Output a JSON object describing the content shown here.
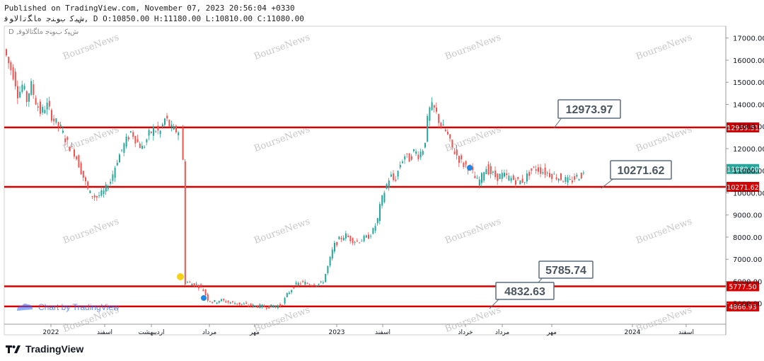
{
  "header": {
    "line1": "Published on TradingView.com, November 07, 2023 20:56:04 +0330",
    "line2": "ﺵﻴﮐ ﺏﻮﻨﺟ ﻩﺎﮕﺗﺍﻻﻮﻓ, D O:10850.00 H:11180.00 L:10810.00 C:11080.00",
    "symbol_line": "D ,ﺵﻴﮐ ﺏﻮﻨﺟ ﻩﺎﮕﺗﺍﻻﻮﻓ"
  },
  "watermark_text": "BourseNews",
  "chart_by": "Chart by TradingView",
  "footer_brand": "TradingView",
  "colors": {
    "up": "#26a69a",
    "down": "#ef5350",
    "hline": "#d50000",
    "callout_border": "#5d6d7e",
    "axis_text": "#131722",
    "last_price_bg": "#26a69a",
    "level_bg": "#d50000",
    "marker_yellow": "#f7d117",
    "marker_blue": "#1e88e5"
  },
  "chart_data": {
    "type": "candlestick",
    "ylim": [
      4000,
      17500
    ],
    "y_ticks": [
      17000,
      16000,
      15000,
      14000,
      13000,
      12000,
      11000,
      10000,
      9000,
      8000,
      7000,
      6000,
      5000
    ],
    "y_tick_labels": [
      "17000.00",
      "16000.00",
      "15000.00",
      "14000.00",
      "13000.00",
      "12000.00",
      "11000.00",
      "10000.00",
      "9000.00",
      "8000.00",
      "7000.00",
      "6000.00",
      "5000.00"
    ],
    "x_tick_labels": [
      "2022",
      "اسفند",
      "اردیبهشت",
      "مرداد",
      "مهر",
      "2023",
      "اسفند",
      "خرداد",
      "مرداد",
      "مهر",
      "2024",
      "اسفند"
    ],
    "horizontal_levels": [
      12959.51,
      10271.62,
      5777.5,
      4866.93
    ],
    "level_labels": [
      "12959.51",
      "10271.62",
      "5777.50",
      "4866.93"
    ],
    "last_price": 11080.0,
    "last_price_label": "11080.00",
    "callouts": [
      "12973.97",
      "10271.62",
      "5785.74",
      "4832.63"
    ],
    "price_path": [
      [
        0,
        16500
      ],
      [
        8,
        15700
      ],
      [
        14,
        15300
      ],
      [
        20,
        14400
      ],
      [
        26,
        14900
      ],
      [
        32,
        14200
      ],
      [
        38,
        14900
      ],
      [
        44,
        14200
      ],
      [
        52,
        13600
      ],
      [
        60,
        14000
      ],
      [
        70,
        13300
      ],
      [
        80,
        12900
      ],
      [
        90,
        12200
      ],
      [
        100,
        11800
      ],
      [
        110,
        10900
      ],
      [
        120,
        10000
      ],
      [
        130,
        9800
      ],
      [
        140,
        10000
      ],
      [
        150,
        10500
      ],
      [
        160,
        11500
      ],
      [
        170,
        12200
      ],
      [
        180,
        12800
      ],
      [
        188,
        12300
      ],
      [
        196,
        12000
      ],
      [
        204,
        12600
      ],
      [
        212,
        12900
      ],
      [
        220,
        12700
      ],
      [
        228,
        13400
      ],
      [
        236,
        12900
      ],
      [
        244,
        12800
      ],
      [
        252,
        12800
      ],
      [
        256,
        6000
      ],
      [
        264,
        5900
      ],
      [
        272,
        5850
      ],
      [
        280,
        5700
      ],
      [
        288,
        5200
      ],
      [
        296,
        5050
      ],
      [
        304,
        5150
      ],
      [
        312,
        5100
      ],
      [
        320,
        5050
      ],
      [
        330,
        5000
      ],
      [
        340,
        4950
      ],
      [
        350,
        4900
      ],
      [
        360,
        4880
      ],
      [
        370,
        4860
      ],
      [
        380,
        4870
      ],
      [
        392,
        4900
      ],
      [
        400,
        5400
      ],
      [
        410,
        5800
      ],
      [
        420,
        5950
      ],
      [
        430,
        5900
      ],
      [
        440,
        5880
      ],
      [
        450,
        5900
      ],
      [
        458,
        6700
      ],
      [
        466,
        7600
      ],
      [
        474,
        7900
      ],
      [
        482,
        8100
      ],
      [
        490,
        7900
      ],
      [
        498,
        7800
      ],
      [
        506,
        7900
      ],
      [
        514,
        8000
      ],
      [
        522,
        8300
      ],
      [
        528,
        8800
      ],
      [
        532,
        9500
      ],
      [
        540,
        10300
      ],
      [
        546,
        10800
      ],
      [
        552,
        10500
      ],
      [
        560,
        11300
      ],
      [
        566,
        11700
      ],
      [
        572,
        11500
      ],
      [
        580,
        11900
      ],
      [
        586,
        11700
      ],
      [
        594,
        12100
      ],
      [
        600,
        13700
      ],
      [
        606,
        13900
      ],
      [
        612,
        13500
      ],
      [
        618,
        13000
      ],
      [
        626,
        12700
      ],
      [
        632,
        12100
      ],
      [
        640,
        11700
      ],
      [
        648,
        11300
      ],
      [
        656,
        11200
      ],
      [
        662,
        10900
      ],
      [
        668,
        10500
      ],
      [
        674,
        10600
      ],
      [
        680,
        11200
      ],
      [
        688,
        10900
      ],
      [
        696,
        10700
      ],
      [
        704,
        10800
      ],
      [
        712,
        10700
      ],
      [
        720,
        10600
      ],
      [
        728,
        10500
      ],
      [
        736,
        10600
      ],
      [
        744,
        11000
      ],
      [
        752,
        11100
      ],
      [
        760,
        11000
      ],
      [
        768,
        10900
      ],
      [
        776,
        10800
      ],
      [
        784,
        10700
      ],
      [
        792,
        10600
      ],
      [
        800,
        10500
      ],
      [
        808,
        10700
      ],
      [
        816,
        10800
      ],
      [
        822,
        10900
      ],
      [
        826,
        11080
      ]
    ]
  }
}
